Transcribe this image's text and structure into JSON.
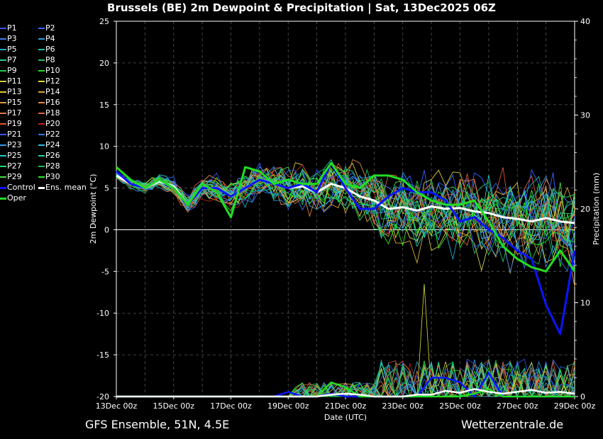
{
  "title": "Brussels  (BE)  2m Dewpoint & Precipitation | Sat, 13Dec2025 06Z",
  "footer": {
    "left": "GFS Ensemble, 51N, 4.5E",
    "right": "Wetterzentrale.de"
  },
  "chart_data": {
    "type": "line",
    "ylabel": "2m Dewpoint (°C)",
    "y2label": "Precipitation (mm)",
    "xlabel": "Date (UTC)",
    "ylim": [
      -20,
      25
    ],
    "y2lim": [
      0,
      40
    ],
    "yticks": [
      "25",
      "20",
      "15",
      "10",
      "5",
      "0",
      "-5",
      "-10",
      "-15",
      "-20"
    ],
    "y2ticks": [
      "40",
      "30",
      "20",
      "10",
      "0"
    ],
    "xticks": [
      "13Dec 00z",
      "15Dec 00z",
      "17Dec 00z",
      "19Dec 00z",
      "21Dec 00z",
      "23Dec 00z",
      "25Dec 00z",
      "27Dec 00z",
      "29Dec 00z"
    ],
    "grid": true,
    "legend_position": "left-outside",
    "members": [
      {
        "name": "P1",
        "color": "#3355ff"
      },
      {
        "name": "P2",
        "color": "#3366ff"
      },
      {
        "name": "P3",
        "color": "#4477ee"
      },
      {
        "name": "P4",
        "color": "#3399dd"
      },
      {
        "name": "P5",
        "color": "#22aacc"
      },
      {
        "name": "P6",
        "color": "#22bbaa"
      },
      {
        "name": "P7",
        "color": "#22cc88"
      },
      {
        "name": "P8",
        "color": "#22bb66"
      },
      {
        "name": "P9",
        "color": "#22cc44"
      },
      {
        "name": "P10",
        "color": "#22dd22"
      },
      {
        "name": "P11",
        "color": "#cccc44"
      },
      {
        "name": "P12",
        "color": "#dddd33"
      },
      {
        "name": "P13",
        "color": "#ddcc33"
      },
      {
        "name": "P14",
        "color": "#ddaa33"
      },
      {
        "name": "P15",
        "color": "#dd9944"
      },
      {
        "name": "P16",
        "color": "#dd8844"
      },
      {
        "name": "P17",
        "color": "#dd7744"
      },
      {
        "name": "P18",
        "color": "#dd6644"
      },
      {
        "name": "P19",
        "color": "#dd5533"
      },
      {
        "name": "P20",
        "color": "#bb2222"
      },
      {
        "name": "P21",
        "color": "#3355ff"
      },
      {
        "name": "P22",
        "color": "#3377dd"
      },
      {
        "name": "P23",
        "color": "#3399ee"
      },
      {
        "name": "P24",
        "color": "#33bbdd"
      },
      {
        "name": "P25",
        "color": "#22cccc"
      },
      {
        "name": "P26",
        "color": "#22ccaa"
      },
      {
        "name": "P27",
        "color": "#22dd66"
      },
      {
        "name": "P28",
        "color": "#22bb55"
      },
      {
        "name": "P29",
        "color": "#44dd44"
      },
      {
        "name": "P30",
        "color": "#22ee22"
      },
      {
        "name": "Control",
        "color": "#0a14ff",
        "bold": true
      },
      {
        "name": "Ens. mean",
        "color": "#ffffff",
        "bold": true
      },
      {
        "name": "Oper",
        "color": "#22dd22",
        "bold": true
      }
    ],
    "series": [
      {
        "name": "Ens. mean",
        "color": "#ffffff",
        "x": [
          0,
          0.5,
          1,
          1.5,
          2,
          2.5,
          3,
          3.5,
          4,
          4.5,
          5,
          5.5,
          6,
          6.5,
          7,
          7.5,
          8,
          8.5,
          9,
          9.5,
          10,
          10.5,
          11,
          11.5,
          12,
          12.5,
          13,
          13.5,
          14,
          14.5,
          15,
          15.5,
          16
        ],
        "y": [
          6.5,
          5.5,
          5.0,
          5.8,
          5.2,
          3.0,
          5.0,
          5.0,
          4.0,
          5.0,
          6.0,
          5.5,
          5.0,
          5.2,
          4.5,
          5.5,
          5.0,
          4.0,
          3.5,
          2.5,
          2.7,
          2.3,
          2.8,
          2.5,
          2.6,
          2.2,
          2.0,
          1.5,
          1.3,
          1.0,
          1.4,
          1.0,
          0.8
        ]
      },
      {
        "name": "Control",
        "color": "#0a14ff",
        "x": [
          0,
          0.5,
          1,
          1.5,
          2,
          2.5,
          3,
          3.5,
          4,
          4.5,
          5,
          5.5,
          6,
          6.5,
          7,
          7.5,
          8,
          8.5,
          9,
          9.5,
          10,
          10.5,
          11,
          11.5,
          12,
          12.5,
          13,
          13.5,
          14,
          14.5,
          15,
          15.5,
          16
        ],
        "y": [
          7.0,
          5.5,
          5.0,
          6.0,
          5.0,
          3.0,
          5.0,
          5.0,
          4.0,
          5.0,
          6.0,
          5.5,
          5.0,
          5.5,
          4.5,
          8.0,
          5.0,
          2.5,
          2.5,
          4.0,
          5.0,
          4.5,
          4.5,
          3.5,
          1.0,
          1.5,
          0.0,
          -1.0,
          -2.5,
          -3.5,
          -9.0,
          -12.5,
          -2.5
        ]
      },
      {
        "name": "Oper",
        "color": "#22dd22",
        "x": [
          0,
          0.5,
          1,
          1.5,
          2,
          2.5,
          3,
          3.5,
          4,
          4.5,
          5,
          5.5,
          6,
          6.5,
          7,
          7.5,
          8,
          8.5,
          9,
          9.5,
          10,
          10.5,
          11,
          11.5,
          12,
          12.5,
          13,
          13.5,
          14,
          14.5,
          15,
          15.5,
          16
        ],
        "y": [
          7.5,
          6.0,
          5.0,
          6.0,
          5.0,
          3.0,
          5.5,
          4.5,
          1.5,
          7.5,
          7.0,
          5.5,
          6.0,
          5.5,
          5.5,
          8.0,
          5.5,
          5.0,
          6.5,
          6.5,
          6.0,
          4.5,
          3.5,
          3.0,
          3.0,
          3.5,
          1.0,
          -2.0,
          -3.5,
          -4.5,
          -5.0,
          -2.5,
          -5.0
        ]
      }
    ]
  }
}
